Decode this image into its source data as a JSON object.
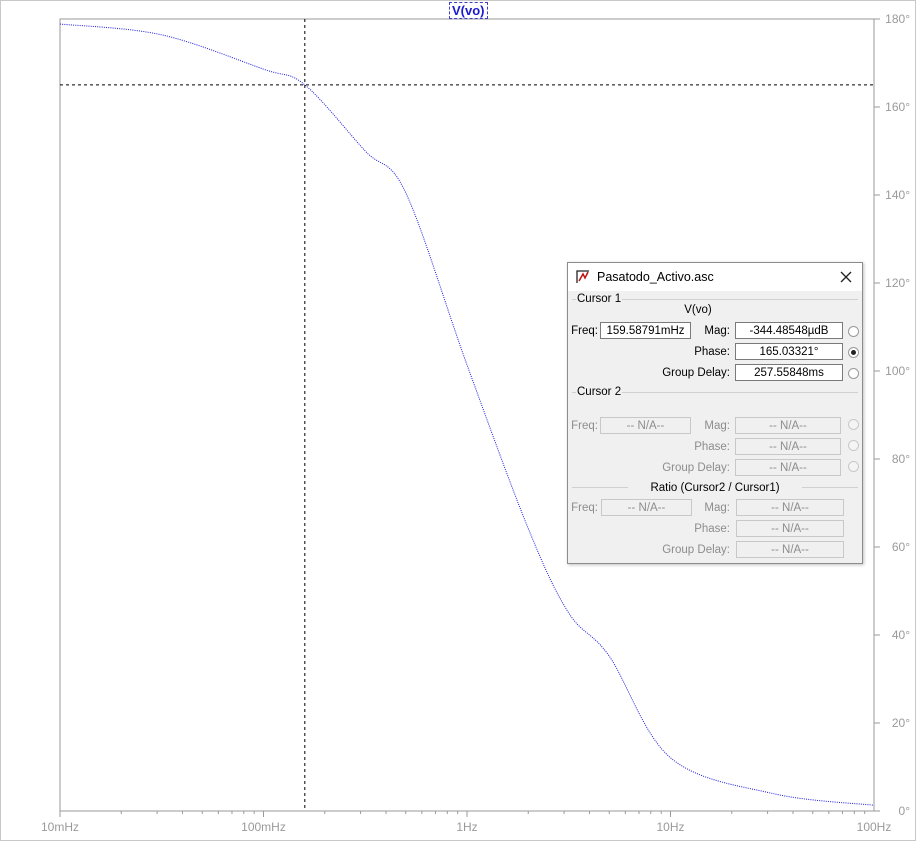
{
  "trace_label": "V(vo)",
  "chart_data": {
    "type": "line",
    "title": "V(vo)",
    "x_scale": "log",
    "x_ticks": [
      "10mHz",
      "100mHz",
      "1Hz",
      "10Hz",
      "100Hz"
    ],
    "y_ticks": [
      "0°",
      "20°",
      "40°",
      "60°",
      "80°",
      "100°",
      "120°",
      "140°",
      "160°",
      "180°"
    ],
    "xlim_hz": [
      0.01,
      100
    ],
    "ylim_deg": [
      0,
      180
    ],
    "series": [
      {
        "name": "V(vo)",
        "color": "#1a1adc",
        "style": "dotted",
        "x_hz": [
          0.01,
          0.0316,
          0.1,
          0.1596,
          0.3162,
          0.5,
          1,
          2,
          3.162,
          5,
          10,
          31.62,
          100
        ],
        "y_deg": [
          178.86,
          176.4,
          168.6,
          165.03,
          150.0,
          140.5,
          101.4,
          64.2,
          45.0,
          35.2,
          12.1,
          4.0,
          1.3
        ]
      }
    ],
    "cursor": {
      "x_hz": 0.1596,
      "y_deg": 165.03
    }
  },
  "dialog": {
    "title": "Pasatodo_Activo.asc",
    "cursor1": {
      "group": "Cursor 1",
      "trace": "V(vo)",
      "freq_label": "Freq:",
      "freq": "159.58791mHz",
      "mag_label": "Mag:",
      "mag": "-344.48548µdB",
      "phase_label": "Phase:",
      "phase": "165.03321°",
      "gd_label": "Group Delay:",
      "gd": "257.55848ms"
    },
    "cursor2": {
      "group": "Cursor 2",
      "freq_label": "Freq:",
      "freq": "-- N/A--",
      "mag_label": "Mag:",
      "mag": "-- N/A--",
      "phase_label": "Phase:",
      "phase": "-- N/A--",
      "gd_label": "Group Delay:",
      "gd": "-- N/A--"
    },
    "ratio": {
      "group": "Ratio (Cursor2 / Cursor1)",
      "freq_label": "Freq:",
      "freq": "-- N/A--",
      "mag_label": "Mag:",
      "mag": "-- N/A--",
      "phase_label": "Phase:",
      "phase": "-- N/A--",
      "gd_label": "Group Delay:",
      "gd": "-- N/A--"
    }
  }
}
